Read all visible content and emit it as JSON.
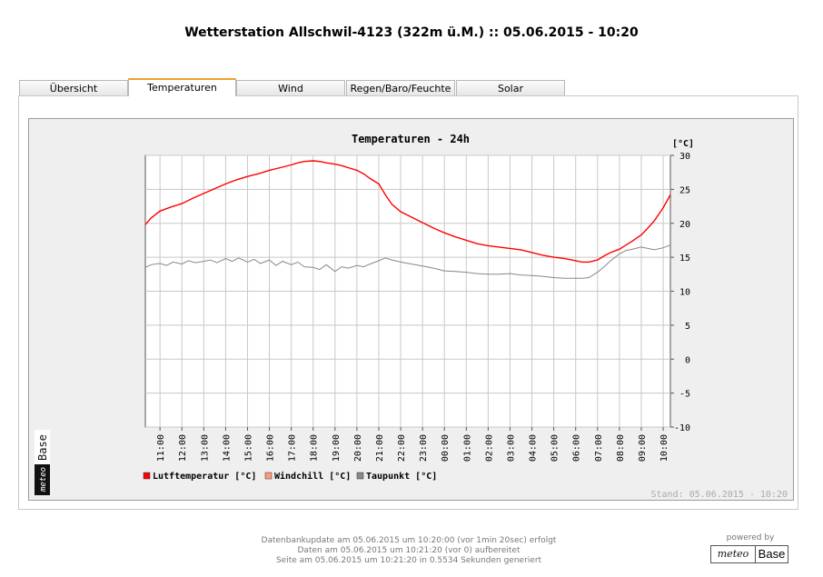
{
  "page": {
    "title": "Wetterstation Allschwil-4123 (322m ü.M.) :: 05.06.2015 - 10:20"
  },
  "tabs": [
    {
      "label": "Übersicht",
      "active": false
    },
    {
      "label": "Temperaturen",
      "active": true
    },
    {
      "label": "Wind",
      "active": false
    },
    {
      "label": "Regen/Baro/Feuchte",
      "active": false
    },
    {
      "label": "Solar",
      "active": false
    }
  ],
  "brand_logo": {
    "left": "meteo",
    "right": "Base"
  },
  "chart_data": {
    "type": "line",
    "title": "Temperaturen - 24h",
    "unit_label": "[°C]",
    "ylim": [
      -10,
      30
    ],
    "y_ticks": [
      30,
      25,
      20,
      15,
      10,
      5,
      0,
      -5,
      -10
    ],
    "x_ticks": [
      "11:00",
      "12:00",
      "13:00",
      "14:00",
      "15:00",
      "16:00",
      "17:00",
      "18:00",
      "19:00",
      "20:00",
      "21:00",
      "22:00",
      "23:00",
      "00:00",
      "01:00",
      "02:00",
      "03:00",
      "04:00",
      "05:00",
      "06:00",
      "07:00",
      "08:00",
      "09:00",
      "10:00"
    ],
    "x_range_hours": [
      10.33,
      34.33
    ],
    "grid": true,
    "legend_position": "bottom-left",
    "series": [
      {
        "name": "Lutftemperatur [°C]",
        "color": "#ff0000",
        "x": [
          10.33,
          10.6,
          11.0,
          11.5,
          12.0,
          12.5,
          13.0,
          13.5,
          14.0,
          14.5,
          15.0,
          15.5,
          16.0,
          16.5,
          17.0,
          17.3,
          17.6,
          18.0,
          18.3,
          18.6,
          19.0,
          19.3,
          19.6,
          20.0,
          20.3,
          20.6,
          21.0,
          21.3,
          21.6,
          22.0,
          22.5,
          23.0,
          23.5,
          24.0,
          24.5,
          25.0,
          25.5,
          26.0,
          26.5,
          27.0,
          27.5,
          28.0,
          28.5,
          29.0,
          29.5,
          30.0,
          30.3,
          30.6,
          31.0,
          31.3,
          31.6,
          32.0,
          32.3,
          32.6,
          33.0,
          33.3,
          33.6,
          34.0,
          34.33
        ],
        "values": [
          19.8,
          20.8,
          21.8,
          22.4,
          22.9,
          23.7,
          24.4,
          25.1,
          25.8,
          26.4,
          26.9,
          27.3,
          27.8,
          28.2,
          28.6,
          28.9,
          29.1,
          29.2,
          29.1,
          28.9,
          28.7,
          28.5,
          28.2,
          27.8,
          27.3,
          26.6,
          25.8,
          24.2,
          22.8,
          21.7,
          20.9,
          20.1,
          19.3,
          18.6,
          18.0,
          17.5,
          17.0,
          16.7,
          16.5,
          16.3,
          16.1,
          15.7,
          15.3,
          15.0,
          14.8,
          14.5,
          14.3,
          14.3,
          14.6,
          15.2,
          15.7,
          16.2,
          16.8,
          17.4,
          18.3,
          19.3,
          20.4,
          22.3,
          24.2
        ]
      },
      {
        "name": "Windchill [°C]",
        "color": "#ff9977",
        "x": [],
        "values": []
      },
      {
        "name": "Taupunkt [°C]",
        "color": "#888888",
        "x": [
          10.33,
          10.6,
          11.0,
          11.3,
          11.6,
          12.0,
          12.3,
          12.6,
          13.0,
          13.3,
          13.6,
          14.0,
          14.3,
          14.6,
          15.0,
          15.3,
          15.6,
          16.0,
          16.3,
          16.6,
          17.0,
          17.3,
          17.6,
          18.0,
          18.3,
          18.6,
          19.0,
          19.3,
          19.6,
          20.0,
          20.3,
          20.6,
          21.0,
          21.3,
          21.6,
          22.0,
          22.5,
          23.0,
          23.5,
          24.0,
          24.5,
          25.0,
          25.5,
          26.0,
          26.5,
          27.0,
          27.5,
          28.0,
          28.5,
          29.0,
          29.5,
          30.0,
          30.3,
          30.6,
          31.0,
          31.3,
          31.6,
          32.0,
          32.3,
          32.6,
          33.0,
          33.3,
          33.6,
          34.0,
          34.33
        ],
        "values": [
          13.5,
          13.9,
          14.1,
          13.8,
          14.3,
          14.0,
          14.5,
          14.2,
          14.4,
          14.6,
          14.2,
          14.8,
          14.4,
          14.9,
          14.3,
          14.7,
          14.1,
          14.6,
          13.8,
          14.4,
          13.9,
          14.3,
          13.6,
          13.5,
          13.2,
          13.9,
          12.9,
          13.6,
          13.4,
          13.8,
          13.6,
          14.0,
          14.5,
          14.9,
          14.6,
          14.3,
          14.0,
          13.7,
          13.4,
          13.0,
          12.9,
          12.8,
          12.6,
          12.5,
          12.5,
          12.6,
          12.4,
          12.3,
          12.2,
          12.0,
          11.9,
          11.9,
          11.9,
          12.0,
          12.8,
          13.6,
          14.5,
          15.5,
          16.0,
          16.2,
          16.5,
          16.3,
          16.1,
          16.4,
          16.8
        ]
      }
    ]
  },
  "chart_footer": "Stand: 05.06.2015 - 10:20",
  "footer": {
    "lines": [
      "Datenbankupdate am 05.06.2015 um 10:20:00 (vor 1min 20sec) erfolgt",
      "Daten am 05.06.2015 um 10:21:20 (vor 0) aufbereitet",
      "Seite am 05.06.2015 um 10:21:20 in 0.5534 Sekunden generiert"
    ],
    "powered_by": "powered by"
  }
}
